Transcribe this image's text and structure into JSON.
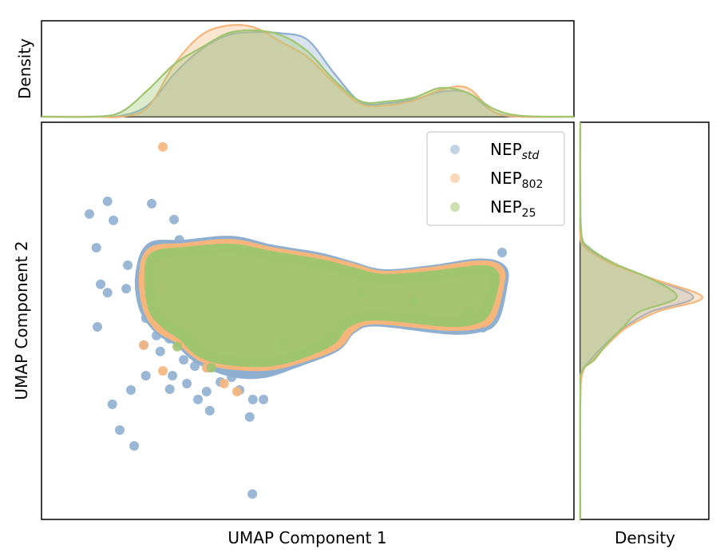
{
  "chart_data": [
    {
      "type": "scatter",
      "xlabel": "UMAP Component 1",
      "ylabel": "UMAP Component 2",
      "xlim": [
        0,
        100
      ],
      "ylim": [
        0,
        100
      ],
      "grid": false,
      "ticks_shown": false,
      "legend": {
        "placement": "top-right",
        "entries": [
          {
            "base": "NEP",
            "sub": "std",
            "italic": true
          },
          {
            "base": "NEP",
            "sub": "802",
            "italic": false
          },
          {
            "base": "NEP",
            "sub": "25",
            "italic": false
          }
        ]
      },
      "series": [
        {
          "color": "#8fafd0",
          "dense_region_outline": [
            [
              18.5,
              61.4
            ],
            [
              20.5,
              68.5
            ],
            [
              26.7,
              69.2
            ],
            [
              35.7,
              70.2
            ],
            [
              43.2,
              68.0
            ],
            [
              52.2,
              66.0
            ],
            [
              58.2,
              63.8
            ],
            [
              64.2,
              61.8
            ],
            [
              73.2,
              62.8
            ],
            [
              82.2,
              64.5
            ],
            [
              86.5,
              63.0
            ],
            [
              86.5,
              58.0
            ],
            [
              85.0,
              50.5
            ],
            [
              82.2,
              48.3
            ],
            [
              76.2,
              47.8
            ],
            [
              62.7,
              49.8
            ],
            [
              58.2,
              47.8
            ],
            [
              55.2,
              43.4
            ],
            [
              47.7,
              39.4
            ],
            [
              41.7,
              36.8
            ],
            [
              36.0,
              37.0
            ],
            [
              29.7,
              40.2
            ],
            [
              25.9,
              44.6
            ],
            [
              22.2,
              47.6
            ],
            [
              19.2,
              53.3
            ]
          ],
          "points": [
            [
              9.0,
              76.9
            ],
            [
              12.4,
              80.1
            ],
            [
              13.5,
              75.3
            ],
            [
              20.7,
              79.5
            ],
            [
              24.9,
              75.5
            ],
            [
              10.3,
              68.4
            ],
            [
              16.2,
              64.0
            ],
            [
              11.1,
              59.2
            ],
            [
              12.4,
              57.1
            ],
            [
              15.9,
              58.1
            ],
            [
              10.5,
              48.5
            ],
            [
              19.6,
              50.7
            ],
            [
              19.2,
              43.9
            ],
            [
              22.3,
              42.3
            ],
            [
              24.0,
              45.5
            ],
            [
              24.6,
              36.2
            ],
            [
              19.6,
              36.2
            ],
            [
              16.8,
              32.6
            ],
            [
              13.3,
              29.0
            ],
            [
              14.7,
              22.5
            ],
            [
              17.4,
              18.5
            ],
            [
              24.1,
              32.8
            ],
            [
              27.3,
              34.2
            ],
            [
              29.4,
              30.2
            ],
            [
              31.6,
              27.4
            ],
            [
              31.0,
              32.2
            ],
            [
              33.6,
              34.6
            ],
            [
              35.7,
              35.8
            ],
            [
              37.2,
              32.6
            ],
            [
              39.7,
              30.2
            ],
            [
              41.7,
              30.2
            ],
            [
              39.1,
              25.8
            ],
            [
              39.6,
              6.4
            ],
            [
              86.5,
              67.2
            ],
            [
              28.8,
              38.6
            ],
            [
              31.2,
              38.2
            ],
            [
              26.7,
              40.2
            ],
            [
              21.6,
              46.3
            ],
            [
              20.2,
              54.3
            ],
            [
              25.9,
              70.4
            ],
            [
              21.4,
              67.4
            ],
            [
              82.9,
              48.3
            ],
            [
              79.2,
              48.7
            ]
          ]
        },
        {
          "color": "#f6b67b",
          "dense_region_outline": [
            [
              19.2,
              61.4
            ],
            [
              20.7,
              67.4
            ],
            [
              26.7,
              68.4
            ],
            [
              35.7,
              69.4
            ],
            [
              43.2,
              67.4
            ],
            [
              52.2,
              65.4
            ],
            [
              58.2,
              63.4
            ],
            [
              64.2,
              61.4
            ],
            [
              73.2,
              62.4
            ],
            [
              82.2,
              64.0
            ],
            [
              85.9,
              62.8
            ],
            [
              85.9,
              58.4
            ],
            [
              84.4,
              51.3
            ],
            [
              82.2,
              49.3
            ],
            [
              76.2,
              48.7
            ],
            [
              62.7,
              50.3
            ],
            [
              58.2,
              48.3
            ],
            [
              55.2,
              43.9
            ],
            [
              47.7,
              40.2
            ],
            [
              41.7,
              38.6
            ],
            [
              34.2,
              39.2
            ],
            [
              29.7,
              41.2
            ],
            [
              25.9,
              45.3
            ],
            [
              22.2,
              48.3
            ],
            [
              19.9,
              53.3
            ]
          ],
          "points": [
            [
              22.8,
              93.8
            ],
            [
              19.2,
              43.9
            ],
            [
              22.8,
              37.4
            ],
            [
              31.0,
              38.2
            ],
            [
              36.7,
              32.2
            ],
            [
              34.3,
              34.2
            ]
          ]
        },
        {
          "color": "#9fc56f",
          "dense_region_outline": [
            [
              20.2,
              61.4
            ],
            [
              21.2,
              66.2
            ],
            [
              26.7,
              67.4
            ],
            [
              35.7,
              68.2
            ],
            [
              43.2,
              66.4
            ],
            [
              52.2,
              64.4
            ],
            [
              58.2,
              62.4
            ],
            [
              64.2,
              60.6
            ],
            [
              73.2,
              61.4
            ],
            [
              82.2,
              62.8
            ],
            [
              84.9,
              61.8
            ],
            [
              84.9,
              58.4
            ],
            [
              83.4,
              52.3
            ],
            [
              81.2,
              50.3
            ],
            [
              76.2,
              49.7
            ],
            [
              62.7,
              51.3
            ],
            [
              57.2,
              49.3
            ],
            [
              54.2,
              44.9
            ],
            [
              47.7,
              41.2
            ],
            [
              41.7,
              39.6
            ],
            [
              34.2,
              40.2
            ],
            [
              29.7,
              42.2
            ],
            [
              26.4,
              46.3
            ],
            [
              23.2,
              49.3
            ],
            [
              20.9,
              53.3
            ]
          ],
          "points": [
            [
              31.9,
              38.2
            ],
            [
              25.5,
              43.5
            ],
            [
              45.0,
              44.0
            ],
            [
              60.0,
              57.0
            ],
            [
              70.0,
              55.0
            ],
            [
              80.0,
              52.0
            ]
          ]
        }
      ]
    },
    {
      "type": "area",
      "ylabel": "Density",
      "x": [
        10,
        15,
        20,
        25,
        30,
        35,
        40,
        45,
        50,
        55,
        60,
        65,
        70,
        75,
        80,
        85,
        90
      ],
      "series": [
        {
          "color": "#8fafd0",
          "values": [
            0,
            0.01,
            0.12,
            0.45,
            0.7,
            0.85,
            0.88,
            0.87,
            0.8,
            0.45,
            0.15,
            0.14,
            0.18,
            0.26,
            0.25,
            0.05,
            0
          ]
        },
        {
          "color": "#f6b67b",
          "values": [
            0,
            0,
            0.1,
            0.55,
            0.85,
            0.95,
            0.93,
            0.78,
            0.62,
            0.35,
            0.13,
            0.12,
            0.17,
            0.28,
            0.3,
            0.05,
            0
          ]
        },
        {
          "color": "#9fc56f",
          "values": [
            0,
            0.05,
            0.28,
            0.55,
            0.72,
            0.87,
            0.9,
            0.85,
            0.68,
            0.38,
            0.16,
            0.16,
            0.2,
            0.3,
            0.25,
            0.08,
            0.01
          ]
        }
      ]
    },
    {
      "type": "area",
      "xlabel": "Density",
      "orientation": "horizontal",
      "y": [
        30,
        37.2,
        40.2,
        44.3,
        48.3,
        52.3,
        55.9,
        60.4,
        64.4,
        68.4,
        71.4,
        80
      ],
      "series": [
        {
          "color": "#8fafd0",
          "values": [
            0,
            0.02,
            0.08,
            0.2,
            0.34,
            0.55,
            0.88,
            0.57,
            0.26,
            0.05,
            0.01,
            0
          ]
        },
        {
          "color": "#f6b67b",
          "values": [
            0,
            0.02,
            0.1,
            0.22,
            0.36,
            0.6,
            0.95,
            0.58,
            0.24,
            0.04,
            0,
            0
          ]
        },
        {
          "color": "#9fc56f",
          "values": [
            0,
            0.01,
            0.11,
            0.21,
            0.33,
            0.46,
            0.75,
            0.56,
            0.27,
            0.07,
            0.01,
            0
          ]
        }
      ]
    }
  ]
}
